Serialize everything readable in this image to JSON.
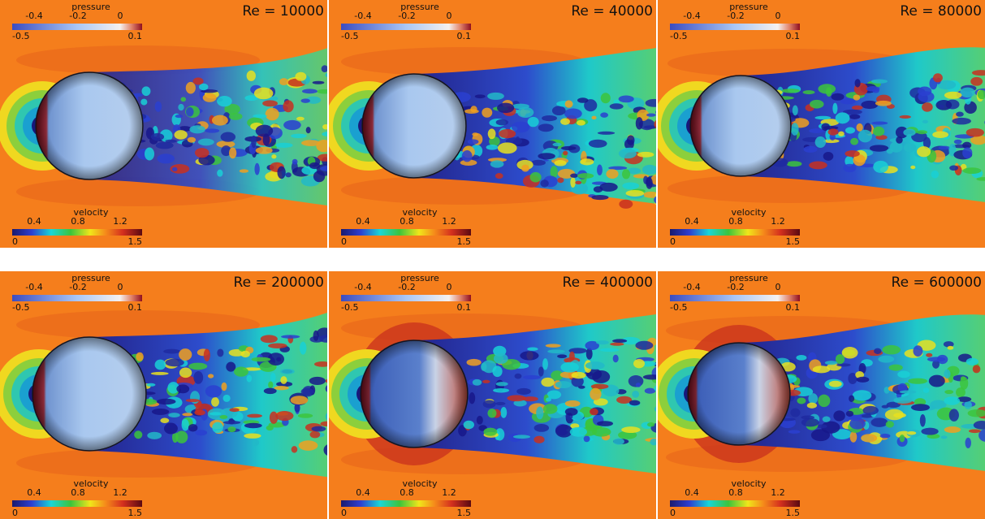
{
  "panels": [
    {
      "label": "Re = 10000",
      "pressure": {
        "title": "pressure",
        "upper_ticks": [
          "-0.4",
          "-0.2",
          "0"
        ],
        "min": "-0.5",
        "max": "0.1"
      },
      "velocity": {
        "title": "velocity",
        "upper_ticks": [
          "0.4",
          "0.8",
          "1.2"
        ],
        "min": "0",
        "max": "1.5"
      }
    },
    {
      "label": "Re = 40000",
      "pressure": {
        "title": "pressure",
        "upper_ticks": [
          "-0.4",
          "-0.2",
          "0"
        ],
        "min": "-0.5",
        "max": "0.1"
      },
      "velocity": {
        "title": "velocity",
        "upper_ticks": [
          "0.4",
          "0.8",
          "1.2"
        ],
        "min": "0",
        "max": "1.5"
      }
    },
    {
      "label": "Re = 80000",
      "pressure": {
        "title": "pressure",
        "upper_ticks": [
          "-0.4",
          "-0.2",
          "0"
        ],
        "min": "-0.5",
        "max": "0.1"
      },
      "velocity": {
        "title": "velocity",
        "upper_ticks": [
          "0.4",
          "0.8",
          "1.2"
        ],
        "min": "0",
        "max": "1.5"
      }
    },
    {
      "label": "Re = 200000",
      "pressure": {
        "title": "pressure",
        "upper_ticks": [
          "-0.4",
          "-0.2",
          "0"
        ],
        "min": "-0.5",
        "max": "0.1"
      },
      "velocity": {
        "title": "velocity",
        "upper_ticks": [
          "0.4",
          "0.8",
          "1.2"
        ],
        "min": "0",
        "max": "1.5"
      }
    },
    {
      "label": "Re = 400000",
      "pressure": {
        "title": "pressure",
        "upper_ticks": [
          "-0.4",
          "-0.2",
          "0"
        ],
        "min": "-0.5",
        "max": "0.1"
      },
      "velocity": {
        "title": "velocity",
        "upper_ticks": [
          "0.4",
          "0.8",
          "1.2"
        ],
        "min": "0",
        "max": "1.5"
      }
    },
    {
      "label": "Re = 600000",
      "pressure": {
        "title": "pressure",
        "upper_ticks": [
          "-0.4",
          "-0.2",
          "0"
        ],
        "min": "-0.5",
        "max": "0.1"
      },
      "velocity": {
        "title": "velocity",
        "upper_ticks": [
          "0.4",
          "0.8",
          "1.2"
        ],
        "min": "0",
        "max": "1.5"
      }
    }
  ]
}
